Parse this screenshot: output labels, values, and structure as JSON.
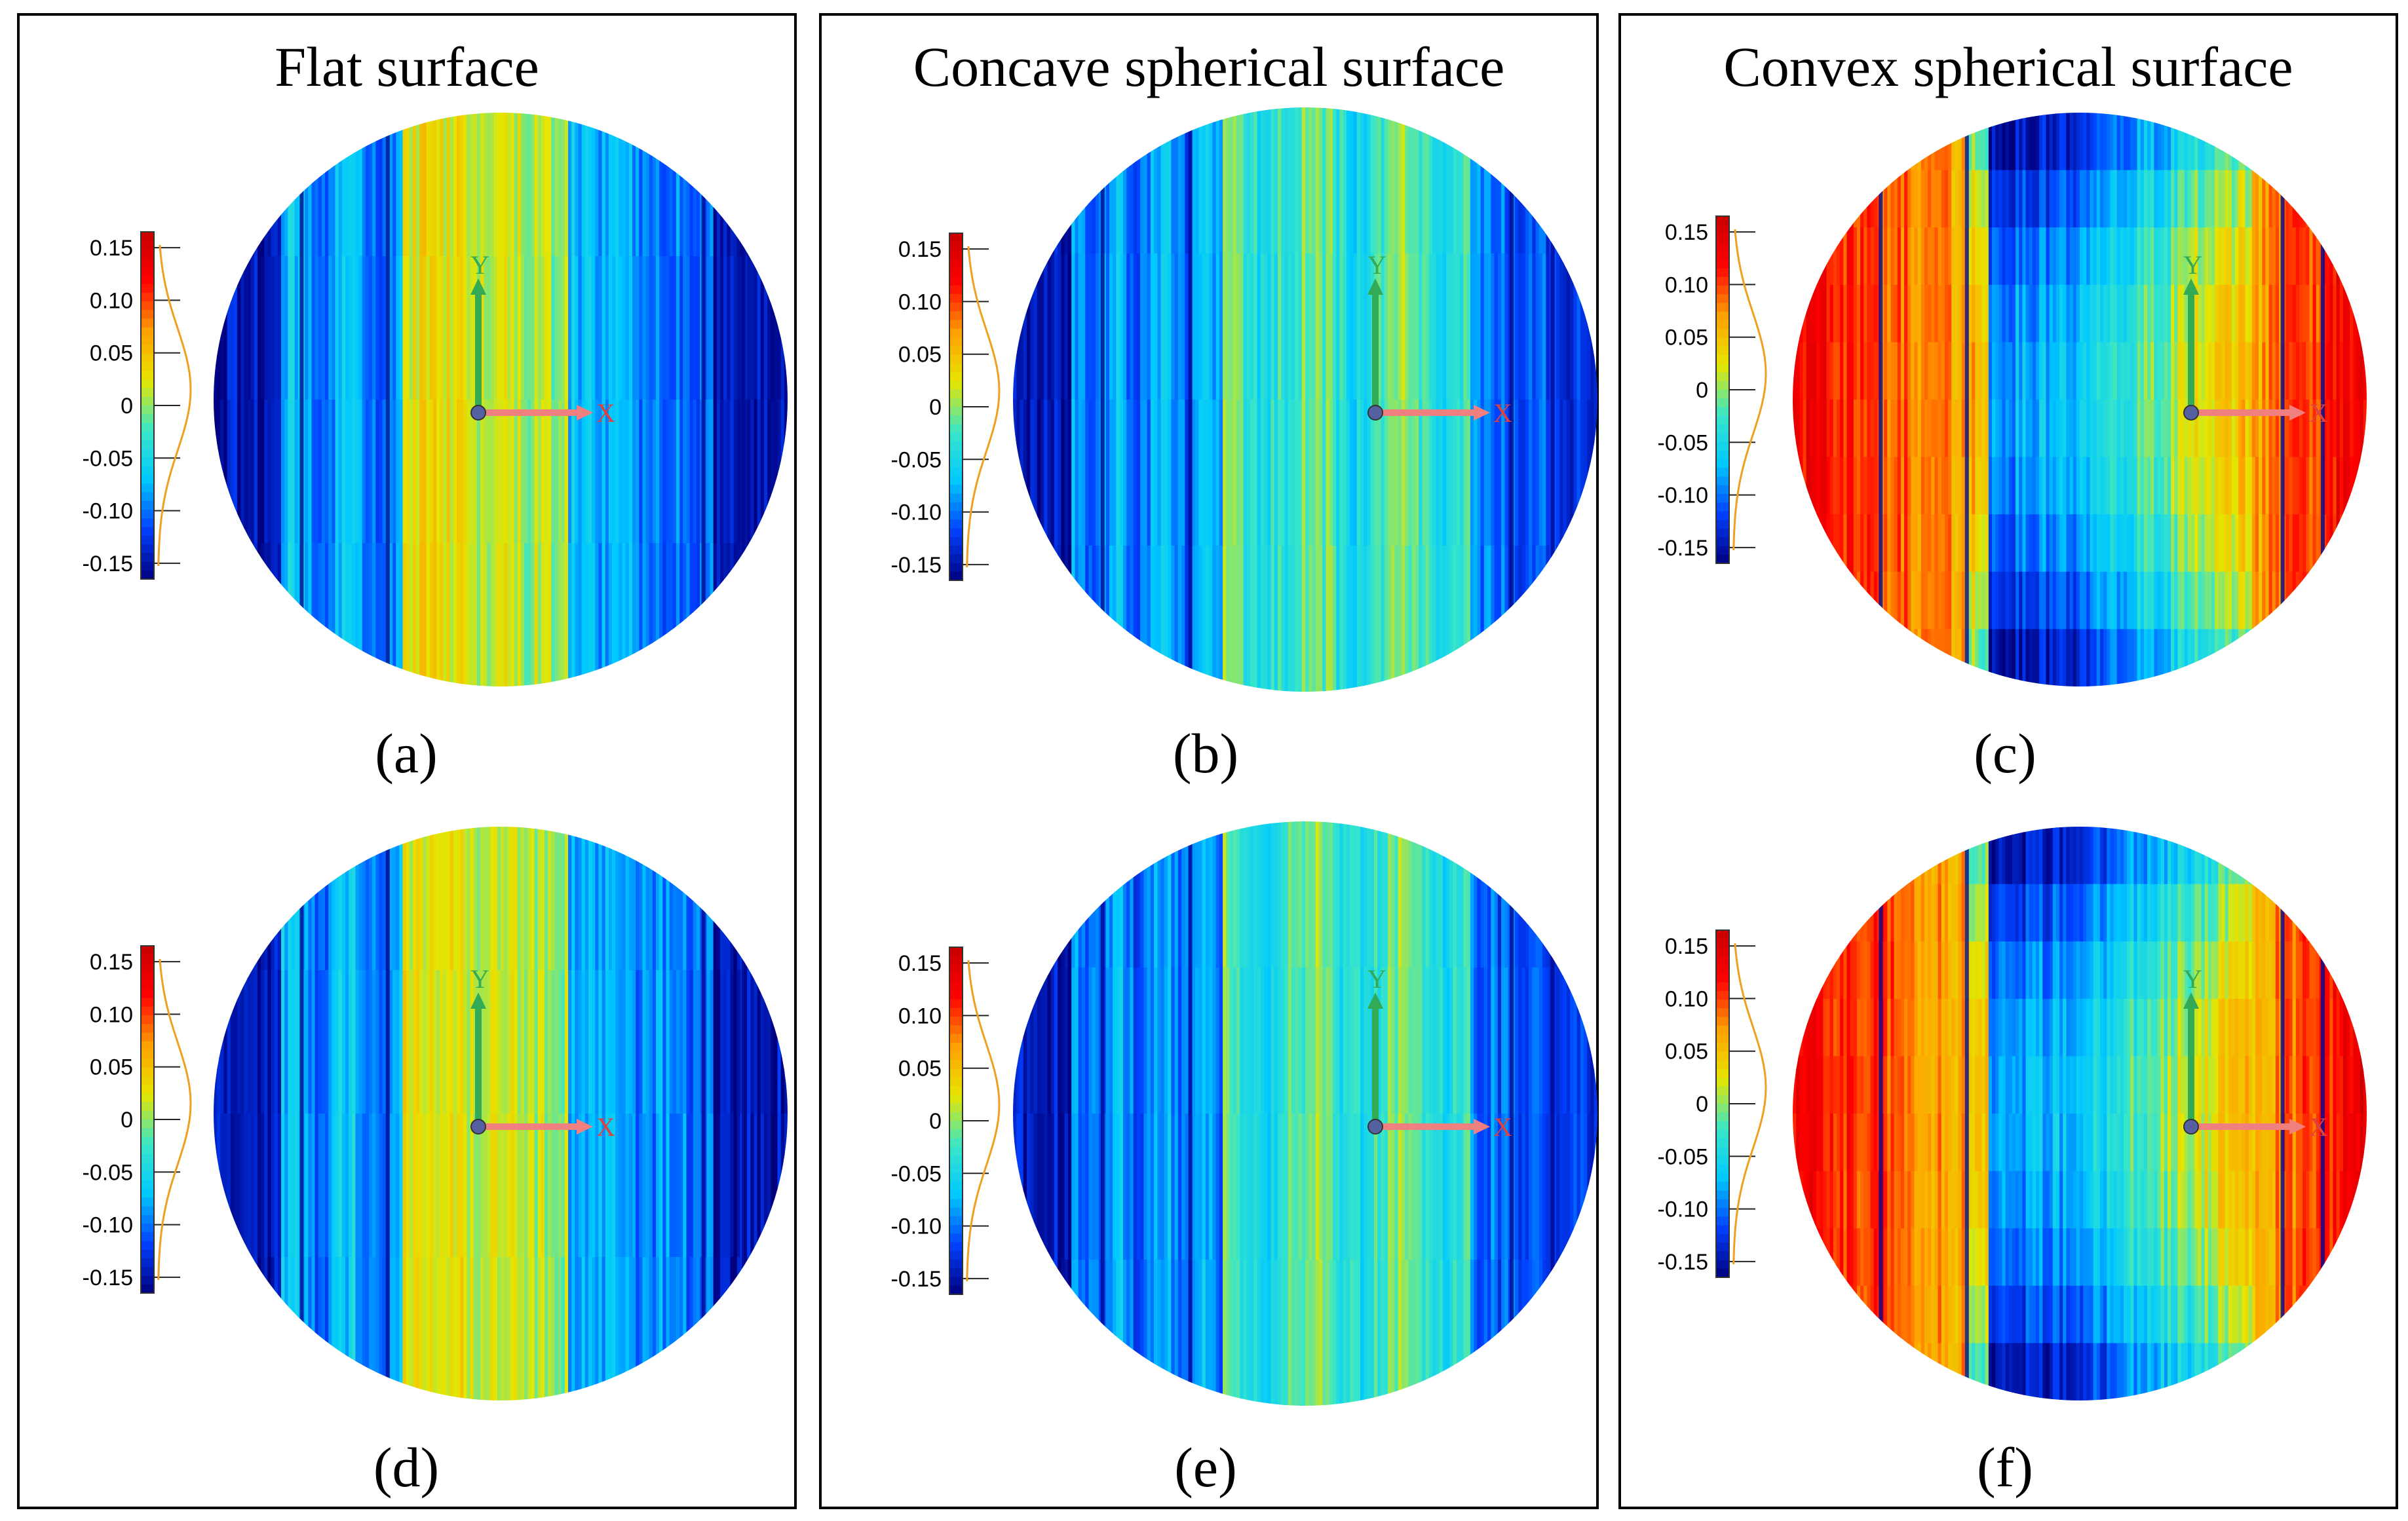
{
  "figure": {
    "columns": [
      {
        "title": "Flat surface"
      },
      {
        "title": "Concave spherical surface"
      },
      {
        "title": "Convex spherical surface"
      }
    ],
    "panels": [
      {
        "label": "(a)",
        "surface": "flat"
      },
      {
        "label": "(b)",
        "surface": "concave"
      },
      {
        "label": "(c)",
        "surface": "convex"
      },
      {
        "label": "(d)",
        "surface": "flat"
      },
      {
        "label": "(e)",
        "surface": "concave"
      },
      {
        "label": "(f)",
        "surface": "convex"
      }
    ],
    "colorbar": {
      "ticks": [
        "0.15",
        "0.10",
        "0.05",
        "0",
        "-0.05",
        "-0.10",
        "-0.15"
      ],
      "tick_values": [
        0.15,
        0.1,
        0.05,
        0,
        -0.05,
        -0.1,
        -0.15
      ],
      "range": [
        -0.165,
        0.165
      ],
      "colors": [
        "#00007f",
        "#0040ff",
        "#00c8ff",
        "#39e6c8",
        "#e6e600",
        "#ffa000",
        "#ff0000",
        "#c80000"
      ]
    },
    "axes": {
      "x_label": "X",
      "y_label": "Y",
      "x_color": "#f08080",
      "y_color": "#33aa55"
    }
  }
}
